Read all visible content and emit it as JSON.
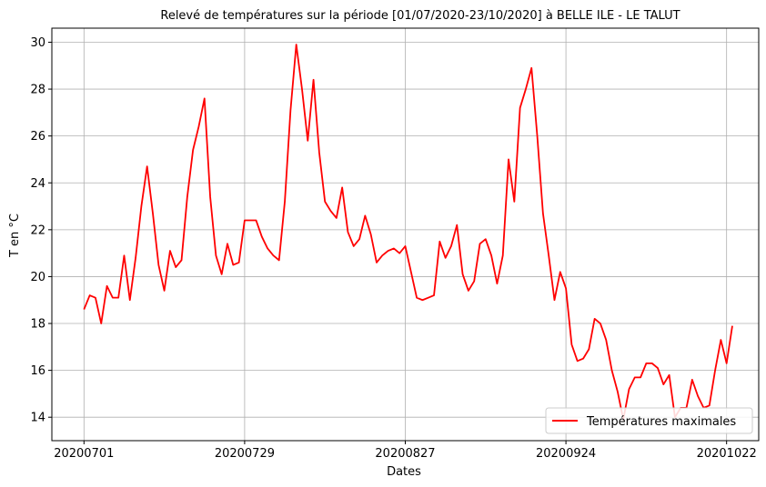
{
  "chart_data": {
    "type": "line",
    "title": "Relevé de températures sur la période [01/07/2020-23/10/2020] à BELLE ILE - LE TALUT",
    "xlabel": "Dates",
    "ylabel": "T en °C",
    "x_ticks": [
      "20200701",
      "20200729",
      "20200827",
      "20200924",
      "20201022"
    ],
    "x_tick_positions": [
      0,
      28,
      56,
      84,
      112
    ],
    "xlim": [
      -5.6,
      117.6
    ],
    "ylim": [
      13.0,
      30.6
    ],
    "y_ticks": [
      14,
      16,
      18,
      20,
      22,
      24,
      26,
      28,
      30
    ],
    "grid": true,
    "legend_position": "lower-right",
    "series": [
      {
        "name": "Températures maximales",
        "color": "#ff0000",
        "values": [
          18.6,
          19.2,
          19.1,
          18.0,
          19.6,
          19.1,
          19.1,
          20.9,
          19.0,
          20.8,
          23.0,
          24.7,
          22.7,
          20.5,
          19.4,
          21.1,
          20.4,
          20.7,
          23.4,
          25.4,
          26.4,
          27.6,
          23.4,
          20.9,
          20.1,
          21.4,
          20.5,
          20.6,
          22.4,
          22.4,
          22.4,
          21.7,
          21.2,
          20.9,
          20.7,
          23.2,
          27.1,
          29.9,
          28.0,
          25.8,
          28.4,
          25.3,
          23.2,
          22.8,
          22.5,
          23.8,
          21.9,
          21.3,
          21.6,
          22.6,
          21.8,
          20.6,
          20.9,
          21.1,
          21.2,
          21.0,
          21.3,
          20.2,
          19.1,
          19.0,
          19.1,
          19.2,
          21.5,
          20.8,
          21.3,
          22.2,
          20.1,
          19.4,
          19.8,
          21.4,
          21.6,
          20.9,
          19.7,
          20.9,
          25.0,
          23.2,
          27.2,
          28.0,
          28.9,
          26.0,
          22.7,
          20.9,
          19.0,
          20.2,
          19.5,
          17.1,
          16.4,
          16.5,
          16.9,
          18.2,
          18.0,
          17.3,
          16.0,
          15.1,
          13.9,
          15.2,
          15.7,
          15.7,
          16.3,
          16.3,
          16.1,
          15.4,
          15.8,
          14.0,
          14.4,
          14.4,
          15.6,
          14.9,
          14.4,
          14.5,
          16.0,
          17.3,
          16.3,
          17.9
        ]
      }
    ]
  }
}
